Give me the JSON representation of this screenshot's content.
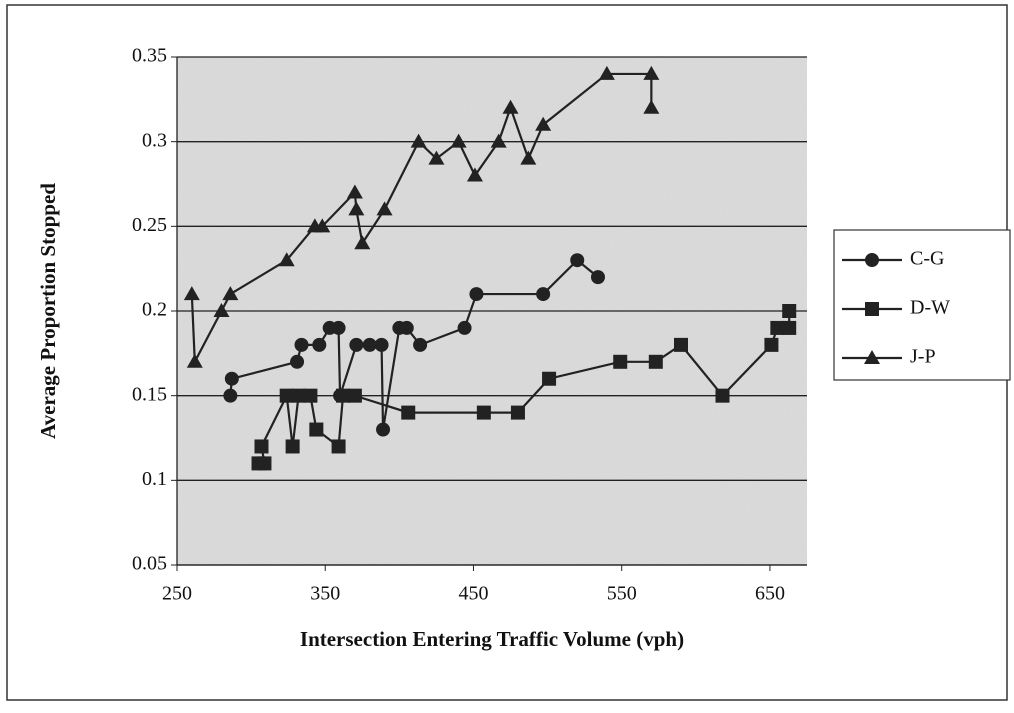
{
  "chart_data": {
    "type": "line",
    "xlabel": "Intersection Entering Traffic Volume (vph)",
    "ylabel": "Average Proportion Stopped",
    "xlim": [
      250,
      675
    ],
    "xticks": [
      250,
      350,
      450,
      550,
      650
    ],
    "ylim": [
      0.05,
      0.35
    ],
    "yticks": [
      0.05,
      0.1,
      0.15,
      0.2,
      0.25,
      0.3,
      0.35
    ],
    "grid": true,
    "legend": "right",
    "series": [
      {
        "name": "C-G",
        "color": "#222222",
        "marker": "circle",
        "x": [
          286,
          287,
          331,
          334,
          346,
          353,
          359,
          360,
          371,
          380,
          388,
          389,
          400,
          405,
          414,
          444,
          452,
          497,
          520,
          534
        ],
        "values": [
          0.15,
          0.16,
          0.17,
          0.18,
          0.18,
          0.19,
          0.19,
          0.15,
          0.18,
          0.18,
          0.18,
          0.13,
          0.19,
          0.19,
          0.18,
          0.19,
          0.21,
          0.21,
          0.23,
          0.22
        ]
      },
      {
        "name": "D-W",
        "color": "#222222",
        "marker": "square",
        "x": [
          305,
          309,
          307,
          324,
          328,
          332,
          340,
          344,
          359,
          362,
          370,
          406,
          457,
          480,
          501,
          549,
          573,
          590,
          618,
          651,
          655,
          663,
          663
        ],
        "values": [
          0.11,
          0.11,
          0.12,
          0.15,
          0.12,
          0.15,
          0.15,
          0.13,
          0.12,
          0.15,
          0.15,
          0.14,
          0.14,
          0.14,
          0.16,
          0.17,
          0.17,
          0.18,
          0.15,
          0.18,
          0.19,
          0.19,
          0.2
        ]
      },
      {
        "name": "J-P",
        "color": "#222222",
        "marker": "triangle",
        "x": [
          260,
          262,
          280,
          286,
          324,
          343,
          348,
          370,
          371,
          375,
          390,
          413,
          425,
          440,
          451,
          467,
          475,
          487,
          497,
          540,
          570,
          570
        ],
        "values": [
          0.21,
          0.17,
          0.2,
          0.21,
          0.23,
          0.25,
          0.25,
          0.27,
          0.26,
          0.24,
          0.26,
          0.3,
          0.29,
          0.3,
          0.28,
          0.3,
          0.32,
          0.29,
          0.31,
          0.34,
          0.34,
          0.32
        ]
      }
    ]
  }
}
